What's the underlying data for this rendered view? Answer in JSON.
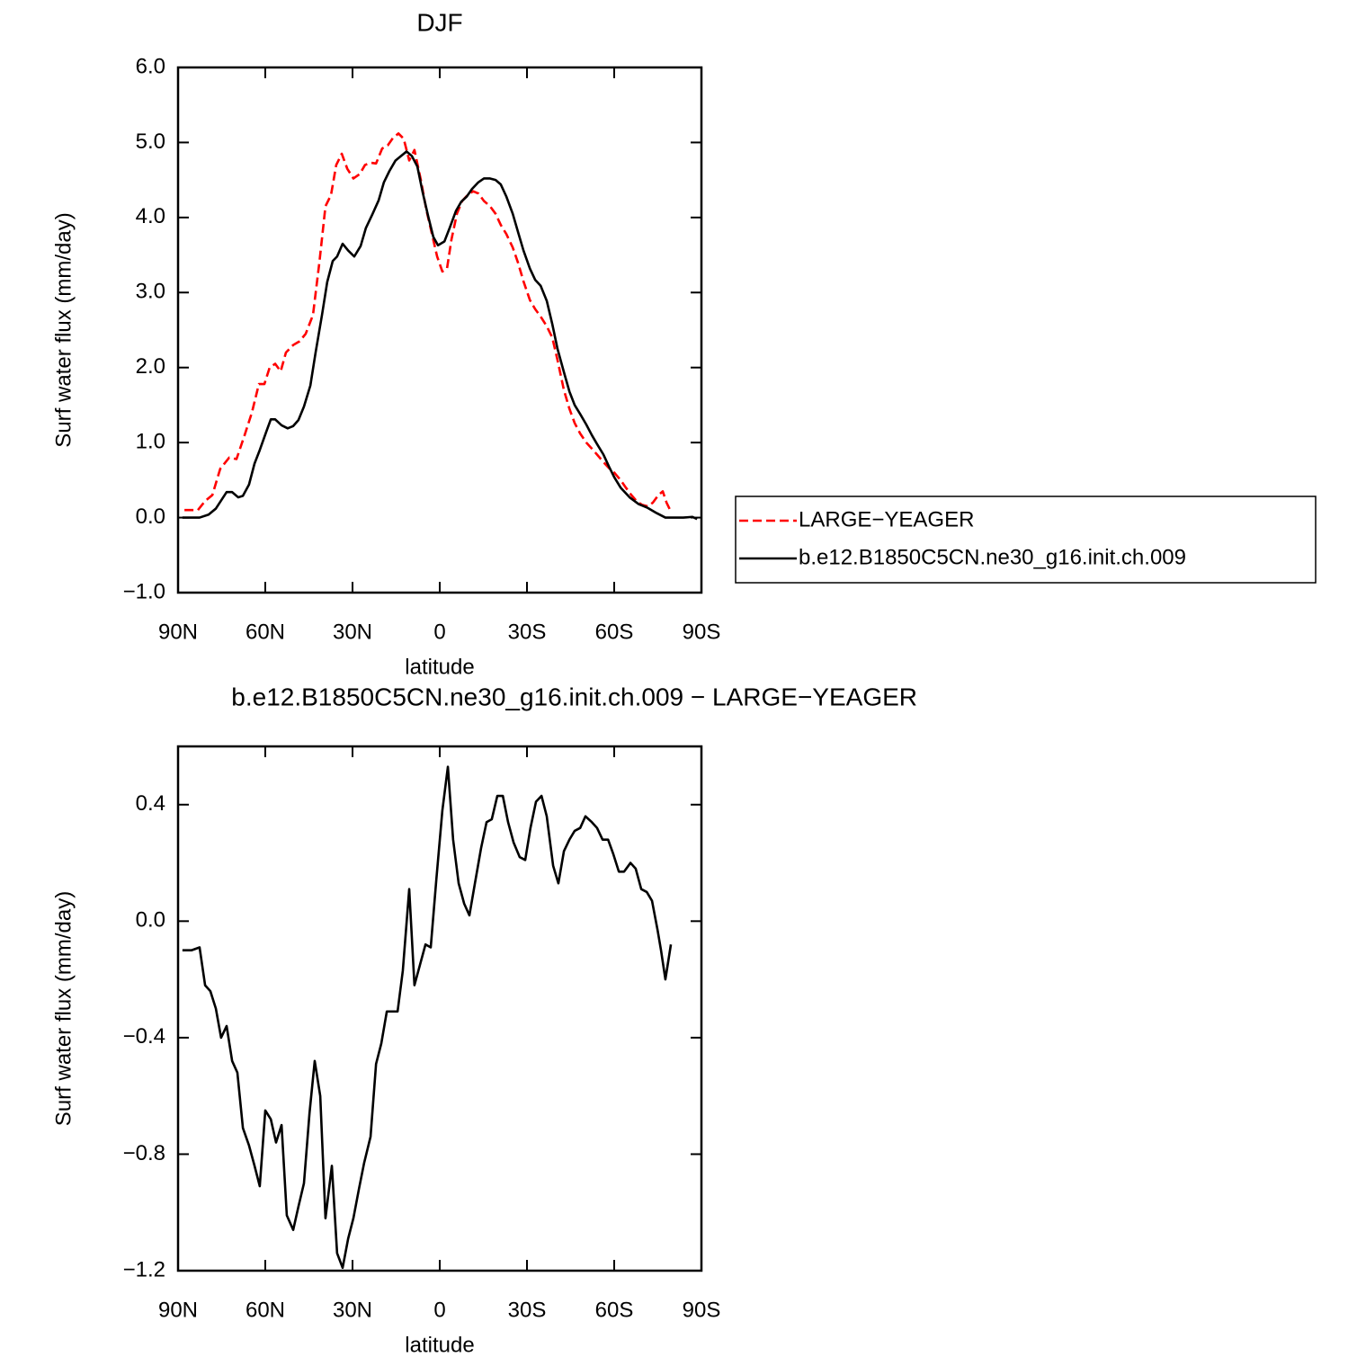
{
  "chart_data": [
    {
      "type": "line",
      "title": "DJF",
      "xlabel": "latitude",
      "ylabel": "Surf water flux (mm/day)",
      "xlim": [
        90,
        -90
      ],
      "xticks": [
        {
          "value": 90,
          "label": "90N"
        },
        {
          "value": 60,
          "label": "60N"
        },
        {
          "value": 30,
          "label": "30N"
        },
        0,
        {
          "value": -30,
          "label": "30S"
        },
        {
          "value": -60,
          "label": "60S"
        },
        {
          "value": -90,
          "label": "90S"
        }
      ],
      "ylim": [
        -1,
        6
      ],
      "yticks": [
        {
          "value": -1,
          "label": "−1.0"
        },
        {
          "value": 0,
          "label": "0.0"
        },
        {
          "value": 1,
          "label": "1.0"
        },
        {
          "value": 2,
          "label": "2.0"
        },
        {
          "value": 3,
          "label": "3.0"
        },
        {
          "value": 4,
          "label": "4.0"
        },
        {
          "value": 5,
          "label": "5.0"
        },
        {
          "value": 6,
          "label": "6.0"
        }
      ],
      "legend": "right",
      "series": [
        {
          "name": "LARGE−YEAGER",
          "color": "#ff0000",
          "dash": true,
          "x": [
            87.8,
            83.2,
            80.7,
            78.2,
            75.5,
            72.4,
            69.9,
            67.1,
            64.6,
            62.2,
            60.3,
            58.5,
            56.6,
            54.7,
            52.9,
            50.4,
            48.2,
            46.1,
            43.6,
            41.4,
            39.3,
            37.4,
            35.6,
            33.7,
            31.8,
            29.7,
            27.5,
            25.7,
            23.8,
            21.9,
            19.8,
            17.9,
            16.1,
            14.2,
            12.4,
            10.5,
            8.7,
            6.5,
            4.6,
            2.8,
            0.9,
            -0.9,
            -2.5,
            -4.0,
            -5.9,
            -7.7,
            -9.6,
            -11.5,
            -13.3,
            -15.2,
            -17.3,
            -19.2,
            -21.0,
            -22.9,
            -25.1,
            -26.9,
            -28.8,
            -31,
            -32.8,
            -34.7,
            -36.8,
            -38.7,
            -40.5,
            -42.7,
            -44.6,
            -46.4,
            -48.3,
            -50.4,
            -52.3,
            -54.1,
            -56.3,
            -58.2,
            -60,
            -62.2,
            -64,
            -65.9,
            -67.7,
            -69.6,
            -71.5,
            -73.3,
            -75.2,
            -76.7,
            -78,
            -79.5
          ],
          "values": [
            0.1,
            0.1,
            0.22,
            0.3,
            0.65,
            0.8,
            0.78,
            1.1,
            1.4,
            1.78,
            1.78,
            2.0,
            2.05,
            1.95,
            2.2,
            2.3,
            2.35,
            2.45,
            2.7,
            3.4,
            4.15,
            4.3,
            4.7,
            4.85,
            4.65,
            4.52,
            4.58,
            4.7,
            4.73,
            4.72,
            4.92,
            4.96,
            5.06,
            5.12,
            5.05,
            4.76,
            4.9,
            4.5,
            4.1,
            3.8,
            3.48,
            3.28,
            3.32,
            3.7,
            4.05,
            4.22,
            4.3,
            4.35,
            4.32,
            4.22,
            4.15,
            4.05,
            3.9,
            3.78,
            3.6,
            3.4,
            3.15,
            2.9,
            2.78,
            2.68,
            2.55,
            2.4,
            2.1,
            1.7,
            1.45,
            1.26,
            1.12,
            1.0,
            0.92,
            0.84,
            0.74,
            0.66,
            0.6,
            0.5,
            0.4,
            0.3,
            0.22,
            0.17,
            0.15,
            0.2,
            0.3,
            0.35,
            0.2,
            0.08
          ]
        },
        {
          "name": "b.e12.B1850C5CN.ne30_g16.init.ch.009",
          "color": "#000000",
          "dash": false,
          "x": [
            88.5,
            82.6,
            79.5,
            77,
            73.3,
            71.4,
            69.3,
            67.7,
            65.6,
            63.7,
            61.9,
            59.7,
            58.1,
            56.6,
            54.4,
            52.3,
            50.4,
            48.6,
            46.7,
            44.5,
            42.7,
            40.5,
            38.7,
            36.8,
            35.3,
            33.4,
            31.5,
            29.4,
            27.2,
            25.4,
            23.2,
            21.0,
            19.2,
            17.3,
            15.2,
            13.0,
            11.4,
            9.6,
            7.7,
            5.9,
            4.0,
            2.2,
            0.6,
            -1.6,
            -3.4,
            -5.6,
            -7.4,
            -9.3,
            -11.1,
            -13.3,
            -15.2,
            -17.3,
            -19.2,
            -21.0,
            -22.9,
            -25.1,
            -26.9,
            -28.8,
            -31.0,
            -32.8,
            -34.7,
            -36.8,
            -38.7,
            -40.5,
            -42.7,
            -44.6,
            -46.4,
            -48.3,
            -50.4,
            -52.3,
            -54.1,
            -56.3,
            -58.2,
            -60.0,
            -62.2,
            -65.3,
            -68.4,
            -71.5,
            -74.6,
            -77.6,
            -83.8,
            -86.9,
            -88.5
          ],
          "values": [
            0,
            0,
            0.04,
            0.12,
            0.34,
            0.34,
            0.27,
            0.29,
            0.44,
            0.72,
            0.9,
            1.14,
            1.31,
            1.31,
            1.23,
            1.19,
            1.22,
            1.3,
            1.48,
            1.76,
            2.2,
            2.7,
            3.14,
            3.42,
            3.48,
            3.65,
            3.56,
            3.48,
            3.62,
            3.86,
            4.04,
            4.23,
            4.47,
            4.62,
            4.76,
            4.83,
            4.88,
            4.82,
            4.68,
            4.34,
            4.02,
            3.74,
            3.63,
            3.68,
            3.86,
            4.09,
            4.21,
            4.28,
            4.38,
            4.47,
            4.52,
            4.52,
            4.5,
            4.44,
            4.28,
            4.05,
            3.81,
            3.56,
            3.32,
            3.17,
            3.09,
            2.89,
            2.58,
            2.25,
            1.94,
            1.68,
            1.5,
            1.38,
            1.24,
            1.1,
            0.98,
            0.84,
            0.68,
            0.54,
            0.4,
            0.27,
            0.18,
            0.13,
            0.06,
            0,
            0,
            0.01,
            -0.02
          ]
        }
      ]
    },
    {
      "type": "line",
      "title": "b.e12.B1850C5CN.ne30_g16.init.ch.009 − LARGE−YEAGER",
      "xlabel": "latitude",
      "ylabel": "Surf water flux (mm/day)",
      "xlim": [
        90,
        -90
      ],
      "xticks": [
        {
          "value": 90,
          "label": "90N"
        },
        {
          "value": 60,
          "label": "60N"
        },
        {
          "value": 30,
          "label": "30N"
        },
        0,
        {
          "value": -30,
          "label": "30S"
        },
        {
          "value": -60,
          "label": "60S"
        },
        {
          "value": -90,
          "label": "90S"
        }
      ],
      "ylim": [
        -1.2,
        0.6
      ],
      "yticks": [
        {
          "value": -1.2,
          "label": "−1.2"
        },
        {
          "value": -0.8,
          "label": "−0.8"
        },
        {
          "value": -0.4,
          "label": "−0.4"
        },
        {
          "value": 0,
          "label": "0.0"
        },
        {
          "value": 0.4,
          "label": "0.4"
        }
      ],
      "series": [
        {
          "color": "#000000",
          "dash": false,
          "x": [
            88.5,
            85.4,
            82.6,
            80.7,
            78.9,
            77,
            75.2,
            73.3,
            71.4,
            69.6,
            67.7,
            65.6,
            63.7,
            61.9,
            60,
            58.1,
            56.3,
            54.4,
            52.6,
            50.4,
            48.6,
            46.7,
            44.8,
            43,
            41.1,
            39.3,
            37.1,
            35.3,
            33.4,
            31.5,
            29.7,
            27.8,
            26,
            23.8,
            21.9,
            20.1,
            18.2,
            16.3,
            14.5,
            12.7,
            10.5,
            8.7,
            6.8,
            4.9,
            3.1,
            1.2,
            -0.9,
            -2.8,
            -4.6,
            -6.5,
            -8.4,
            -10.2,
            -12.1,
            -14.2,
            -16.1,
            -17.9,
            -19.8,
            -21.7,
            -23.5,
            -25.4,
            -27.5,
            -29.4,
            -31.2,
            -33.1,
            -35,
            -36.8,
            -39,
            -40.8,
            -42.7,
            -44.6,
            -46.4,
            -48.3,
            -50.1,
            -52.3,
            -54.1,
            -56,
            -57.9,
            -59.7,
            -61.6,
            -63.4,
            -65.6,
            -67.4,
            -69.3,
            -71.2,
            -73,
            -74.9,
            -76.1,
            -77.6,
            -79.5
          ],
          "values": [
            -0.1,
            -0.1,
            -0.09,
            -0.22,
            -0.24,
            -0.3,
            -0.4,
            -0.36,
            -0.48,
            -0.52,
            -0.71,
            -0.77,
            -0.84,
            -0.91,
            -0.65,
            -0.68,
            -0.76,
            -0.7,
            -1.01,
            -1.06,
            -0.98,
            -0.9,
            -0.66,
            -0.48,
            -0.6,
            -1.02,
            -0.84,
            -1.14,
            -1.19,
            -1.09,
            -1.02,
            -0.92,
            -0.83,
            -0.74,
            -0.49,
            -0.42,
            -0.31,
            -0.31,
            -0.31,
            -0.17,
            0.11,
            -0.22,
            -0.15,
            -0.08,
            -0.09,
            0.14,
            0.38,
            0.53,
            0.28,
            0.13,
            0.06,
            0.02,
            0.13,
            0.25,
            0.34,
            0.35,
            0.43,
            0.43,
            0.34,
            0.27,
            0.22,
            0.21,
            0.32,
            0.41,
            0.43,
            0.36,
            0.19,
            0.13,
            0.24,
            0.28,
            0.31,
            0.32,
            0.36,
            0.34,
            0.32,
            0.28,
            0.28,
            0.23,
            0.17,
            0.17,
            0.2,
            0.18,
            0.11,
            0.1,
            0.07,
            -0.03,
            -0.1,
            -0.2,
            -0.08
          ]
        }
      ]
    }
  ]
}
